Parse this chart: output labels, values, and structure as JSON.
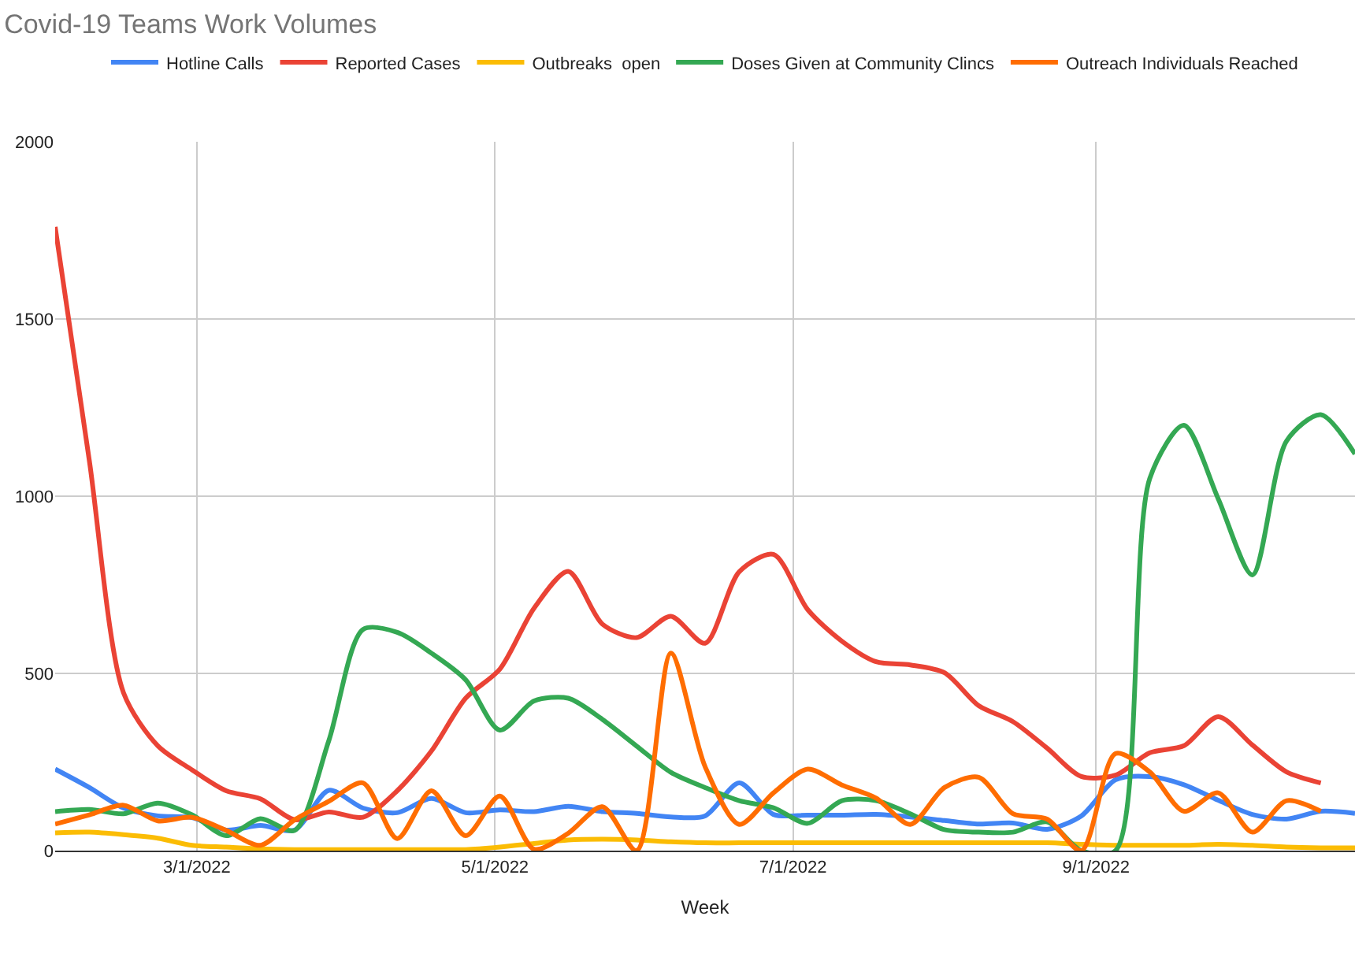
{
  "chart_data": {
    "type": "line",
    "title": "Covid-19 Teams Work Volumes",
    "xlabel": "Week",
    "x": [
      "2022-01-31",
      "2022-02-07",
      "2022-02-14",
      "2022-02-21",
      "2022-02-28",
      "2022-03-07",
      "2022-03-14",
      "2022-03-21",
      "2022-03-28",
      "2022-04-04",
      "2022-04-11",
      "2022-04-18",
      "2022-04-25",
      "2022-05-02",
      "2022-05-09",
      "2022-05-16",
      "2022-05-23",
      "2022-05-30",
      "2022-06-06",
      "2022-06-13",
      "2022-06-20",
      "2022-06-27",
      "2022-07-04",
      "2022-07-11",
      "2022-07-18",
      "2022-07-25",
      "2022-08-01",
      "2022-08-08",
      "2022-08-15",
      "2022-08-22",
      "2022-08-29",
      "2022-09-05",
      "2022-09-12",
      "2022-09-19",
      "2022-09-26",
      "2022-10-03",
      "2022-10-10",
      "2022-10-17",
      "2022-10-24"
    ],
    "series": [
      {
        "name": "Hotline Calls",
        "color": "#4285f4",
        "values": [
          230,
          178,
          120,
          98,
          93,
          58,
          71,
          58,
          170,
          120,
          107,
          147,
          107,
          115,
          110,
          125,
          110,
          105,
          95,
          98,
          191,
          102,
          100,
          100,
          102,
          95,
          85,
          75,
          78,
          60,
          98,
          200,
          209,
          186,
          142,
          102,
          89,
          111,
          105
        ]
      },
      {
        "name": "Reported Cases",
        "color": "#ea4335",
        "values": [
          1760,
          1100,
          445,
          296,
          228,
          169,
          146,
          87,
          109,
          94,
          169,
          281,
          430,
          512,
          684,
          788,
          639,
          601,
          661,
          585,
          787,
          836,
          680,
          591,
          533,
          524,
          502,
          409,
          364,
          289,
          209,
          213,
          276,
          296,
          378,
          298,
          222,
          191,
          null
        ]
      },
      {
        "name": "Outbreaks  open",
        "color": "#fbbc04",
        "values": [
          50,
          52,
          45,
          35,
          15,
          10,
          5,
          3,
          3,
          3,
          3,
          3,
          3,
          10,
          20,
          30,
          32,
          30,
          25,
          22,
          22,
          22,
          22,
          22,
          22,
          22,
          22,
          22,
          22,
          22,
          18,
          15,
          15,
          15,
          18,
          15,
          10,
          8,
          8
        ]
      },
      {
        "name": "Doses Given at Community Clincs",
        "color": "#34a853",
        "values": [
          110,
          116,
          104,
          134,
          101,
          42,
          90,
          57,
          310,
          624,
          616,
          557,
          482,
          340,
          422,
          430,
          370,
          295,
          221,
          178,
          141,
          121,
          77,
          141,
          141,
          104,
          59,
          52,
          52,
          81,
          0,
          0,
          1050,
          1200,
          993,
          778,
          1156,
          1230,
          1119
        ]
      },
      {
        "name": "Outreach Individuals Reached",
        "color": "#ff6d01",
        "values": [
          75,
          101,
          128,
          84,
          94,
          57,
          15,
          87,
          139,
          191,
          34,
          169,
          42,
          154,
          4,
          49,
          124,
          0,
          557,
          237,
          74,
          163,
          230,
          185,
          148,
          74,
          178,
          207,
          104,
          89,
          0,
          274,
          222,
          111,
          163,
          52,
          141,
          111,
          null
        ]
      }
    ],
    "xlim": [
      "2022-01-31",
      "2022-10-24"
    ],
    "xticks": [
      {
        "value": "2022-03-01",
        "label": "3/1/2022"
      },
      {
        "value": "2022-05-01",
        "label": "5/1/2022"
      },
      {
        "value": "2022-07-01",
        "label": "7/1/2022"
      },
      {
        "value": "2022-09-01",
        "label": "9/1/2022"
      }
    ],
    "ylim": [
      0,
      2000
    ],
    "yticks": [
      0,
      500,
      1000,
      1500,
      2000
    ],
    "grid": true,
    "legend": "top",
    "marker": "none",
    "line_style": "solid"
  }
}
